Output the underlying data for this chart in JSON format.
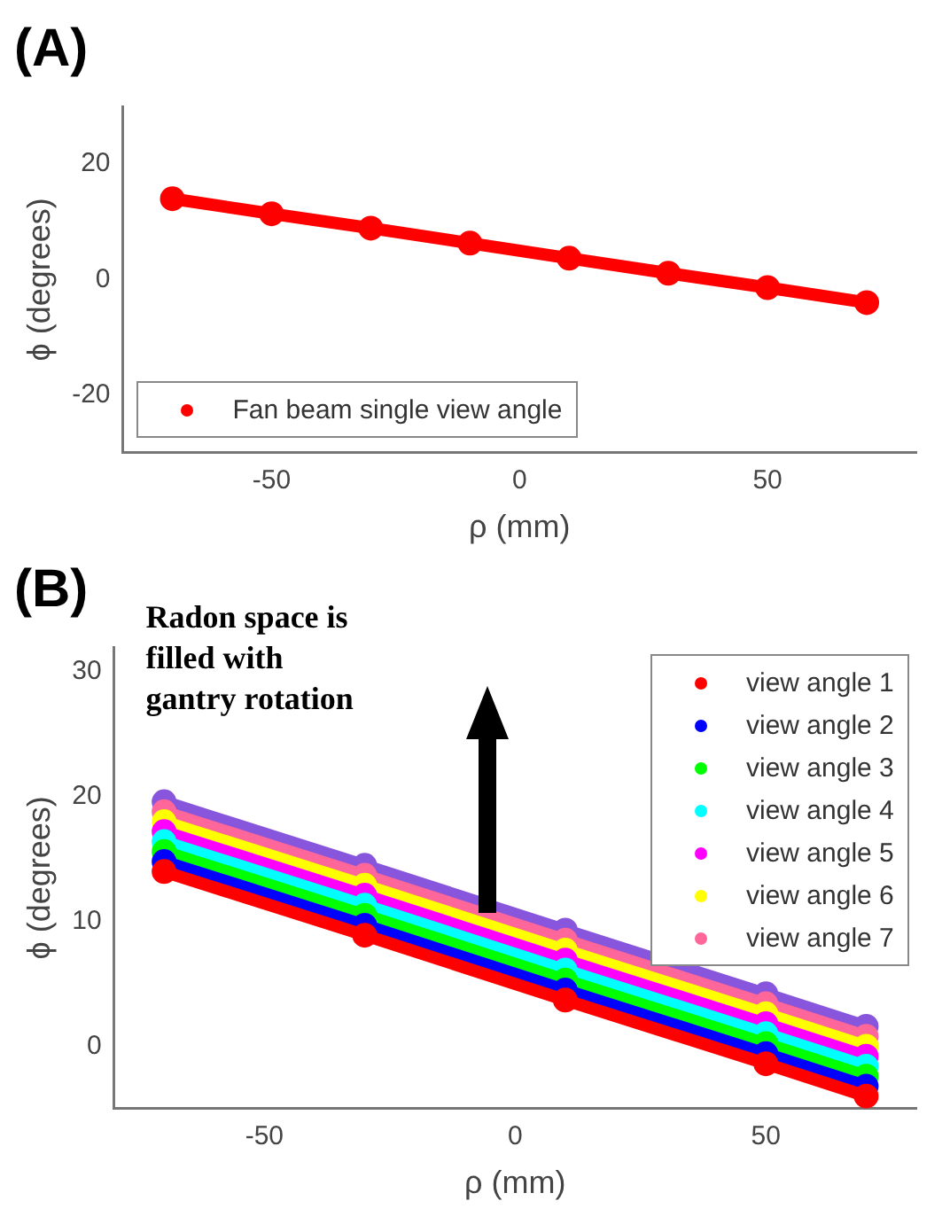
{
  "chart_data": [
    {
      "type": "line",
      "title": "(A)",
      "xlabel": "ρ (mm)",
      "ylabel": "ϕ (degrees)",
      "xlim": [
        -80,
        80
      ],
      "xticks": [
        -50,
        0,
        50
      ],
      "ylim": [
        -30,
        30
      ],
      "yticks": [
        -20,
        0,
        20
      ],
      "grid": false,
      "legend": "bottom left",
      "marker": "circle",
      "line_style": "solid",
      "x": [
        -70,
        -50,
        -30,
        -10,
        10,
        30,
        50,
        70
      ],
      "series": [
        {
          "name": "Fan beam single view angle",
          "color": "#ff0000",
          "values": [
            14,
            11.4,
            8.9,
            6.3,
            3.7,
            1.1,
            -1.4,
            -4
          ]
        }
      ]
    },
    {
      "type": "line",
      "title": "(B)",
      "xlabel": "ρ (mm)",
      "ylabel": "ϕ (degrees)",
      "xlim": [
        -80,
        80
      ],
      "xticks": [
        -50,
        0,
        50
      ],
      "ylim": [
        -5,
        32
      ],
      "yticks": [
        0,
        10,
        20,
        30
      ],
      "grid": false,
      "legend": "top right",
      "marker": "circle",
      "line_style": "solid",
      "annotations": [
        "Radon space is filled with gantry rotation"
      ],
      "x": [
        -70,
        -30,
        10,
        50,
        70
      ],
      "series": [
        {
          "name": "view angle 1",
          "color": "#ff0000",
          "values": [
            14,
            8.9,
            3.7,
            -1.4,
            -4
          ]
        },
        {
          "name": "view angle 2",
          "color": "#0000ff",
          "values": [
            14.8,
            9.7,
            4.5,
            -0.6,
            -3.2
          ]
        },
        {
          "name": "view angle 3",
          "color": "#00ff00",
          "values": [
            15.6,
            10.5,
            5.3,
            0.2,
            -2.4
          ]
        },
        {
          "name": "view angle 4",
          "color": "#00ffff",
          "values": [
            16.4,
            11.3,
            6.1,
            1,
            -1.6
          ]
        },
        {
          "name": "view angle 5",
          "color": "#ff00ff",
          "values": [
            17.2,
            12.1,
            6.9,
            1.8,
            -0.8
          ]
        },
        {
          "name": "view angle 6",
          "color": "#ffff00",
          "values": [
            18,
            12.9,
            7.7,
            2.6,
            0
          ]
        },
        {
          "name": "view angle 7",
          "color": "#ff6699",
          "values": [
            18.8,
            13.7,
            8.5,
            3.4,
            0.8
          ]
        },
        {
          "color": "#8855dd",
          "values": [
            19.6,
            14.5,
            9.3,
            4.2,
            1.6
          ]
        }
      ]
    }
  ]
}
